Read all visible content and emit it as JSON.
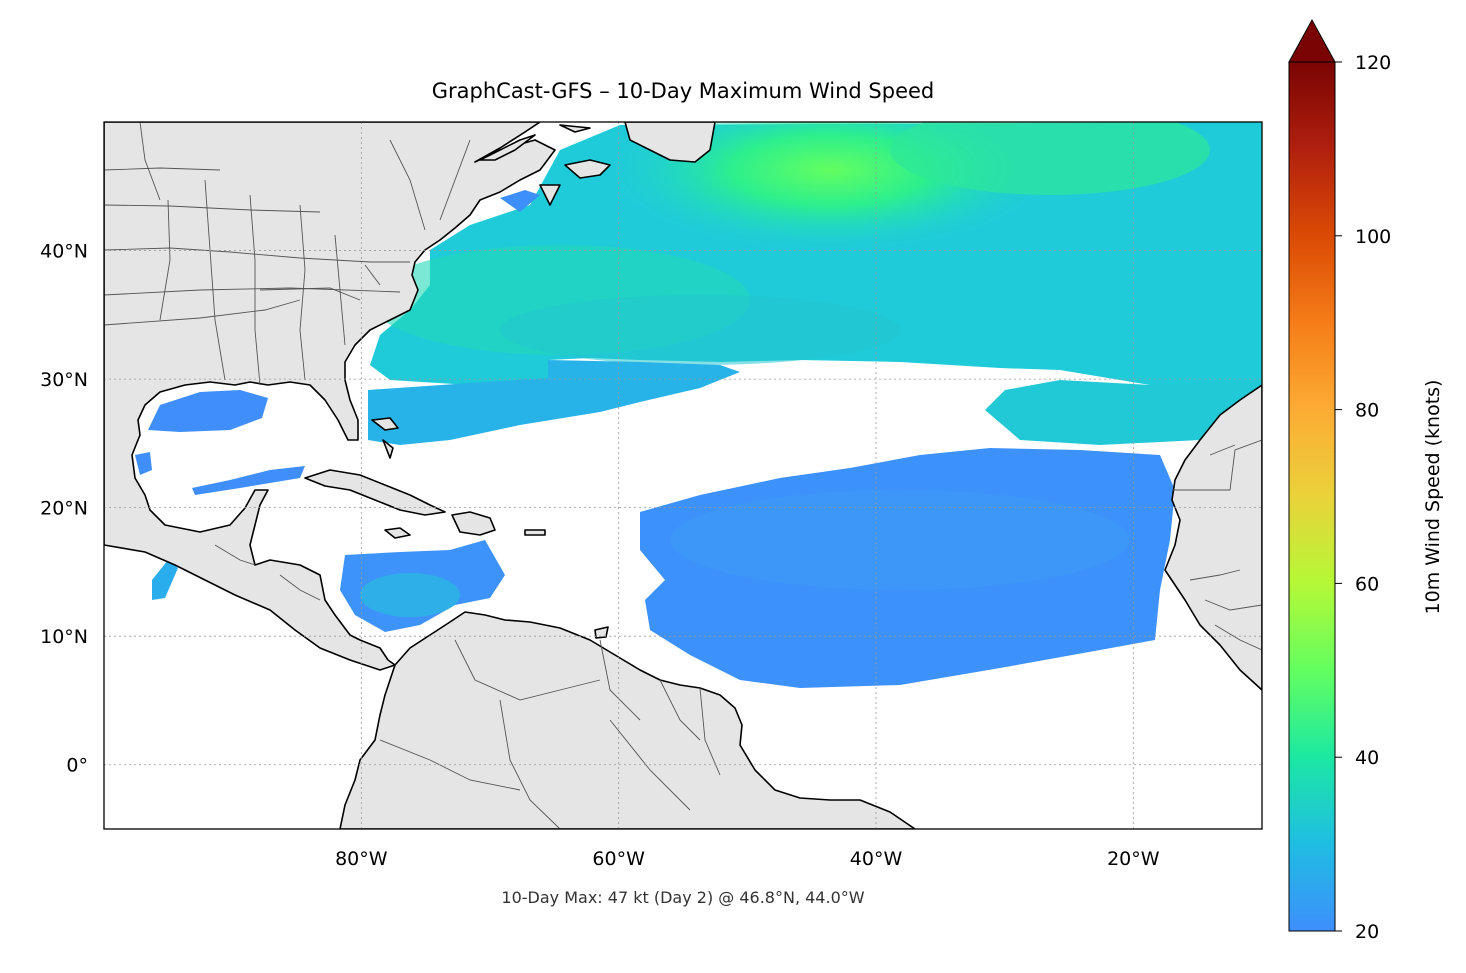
{
  "title": "GraphCast-GFS – 10-Day Maximum Wind Speed",
  "subtitle": "10-Day Max: 47 kt (Day 2) @ 46.8°N, 44.0°W",
  "map": {
    "extent": {
      "lon_min": -100,
      "lon_max": -10,
      "lat_min": -5,
      "lat_max": 50
    },
    "lon_ticks": [
      {
        "value": -80,
        "label": "80°W"
      },
      {
        "value": -60,
        "label": "60°W"
      },
      {
        "value": -40,
        "label": "40°W"
      },
      {
        "value": -20,
        "label": "20°W"
      }
    ],
    "lat_ticks": [
      {
        "value": 40,
        "label": "40°N"
      },
      {
        "value": 30,
        "label": "30°N"
      },
      {
        "value": 20,
        "label": "20°N"
      },
      {
        "value": 10,
        "label": "10°N"
      },
      {
        "value": 0,
        "label": "0°"
      }
    ],
    "land_color": "#e5e5e5",
    "coast_color": "#000000",
    "border_color": "#555555",
    "grid": "dotted"
  },
  "colorbar": {
    "label": "10m Wind Speed (knots)",
    "min": 20,
    "max": 120,
    "extend": "max",
    "ticks": [
      {
        "value": 120,
        "label": "120"
      },
      {
        "value": 100,
        "label": "100"
      },
      {
        "value": 80,
        "label": "80"
      },
      {
        "value": 60,
        "label": "60"
      },
      {
        "value": 40,
        "label": "40"
      },
      {
        "value": 20,
        "label": "20"
      }
    ],
    "colormap": "turbo",
    "stops": [
      "#3e8ffb",
      "#1fbde2",
      "#1ce8a2",
      "#63fe60",
      "#b5f836",
      "#ead23a",
      "#fcac34",
      "#f57d18",
      "#db4a05",
      "#b0200e",
      "#7a0403"
    ]
  },
  "chart_data": {
    "type": "heatmap",
    "variable": "10m Wind Speed (knots)",
    "max_value_kt": 47,
    "max_day": 2,
    "max_location": {
      "lat": 46.8,
      "lon": -44.0
    },
    "regions": [
      {
        "lat": 45,
        "lon": -50,
        "value_kt": 44
      },
      {
        "lat": 47,
        "lon": -44,
        "value_kt": 47
      },
      {
        "lat": 38,
        "lon": -60,
        "value_kt": 33
      },
      {
        "lat": 32,
        "lon": -30,
        "value_kt": 29
      },
      {
        "lat": 18,
        "lon": -40,
        "value_kt": 23
      },
      {
        "lat": 13,
        "lon": -74,
        "value_kt": 24
      },
      {
        "lat": 28,
        "lon": -87,
        "value_kt": 22
      }
    ]
  }
}
